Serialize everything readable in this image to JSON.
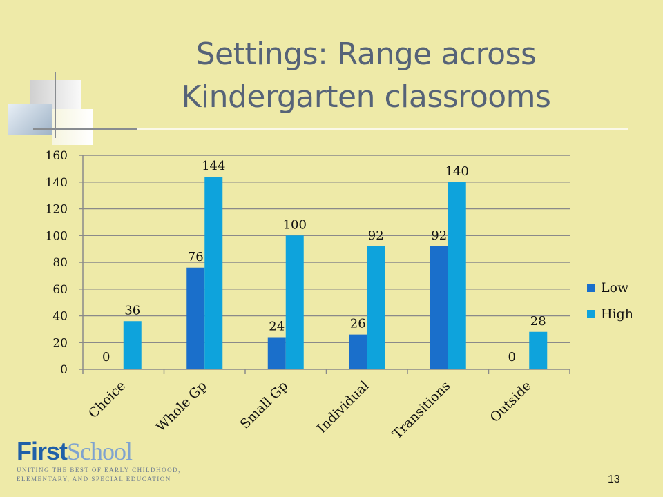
{
  "slide": {
    "title_line1": "Settings: Range across",
    "title_line2": "Kindergarten classrooms",
    "page_number": "13"
  },
  "logo": {
    "first": "First",
    "school": "School",
    "tagline_line1": "UNITING THE BEST OF EARLY CHILDHOOD,",
    "tagline_line2": "ELEMENTARY, AND SPECIAL EDUCATION"
  },
  "colors": {
    "low": "#1a6fcb",
    "high": "#0ea3dc",
    "background": "#eeeaa8",
    "title": "#566378"
  },
  "chart_data": {
    "type": "bar",
    "categories": [
      "Choice",
      "Whole Gp",
      "Small Gp",
      "Individual",
      "Transitions",
      "Outside"
    ],
    "series": [
      {
        "name": "Low",
        "values": [
          0,
          76,
          24,
          26,
          92,
          0
        ]
      },
      {
        "name": "High",
        "values": [
          36,
          144,
          100,
          92,
          140,
          28
        ]
      }
    ],
    "ylim": [
      0,
      160
    ],
    "yticks": [
      0,
      20,
      40,
      60,
      80,
      100,
      120,
      140,
      160
    ],
    "grid": true,
    "legend_position": "right",
    "data_labels": true
  }
}
